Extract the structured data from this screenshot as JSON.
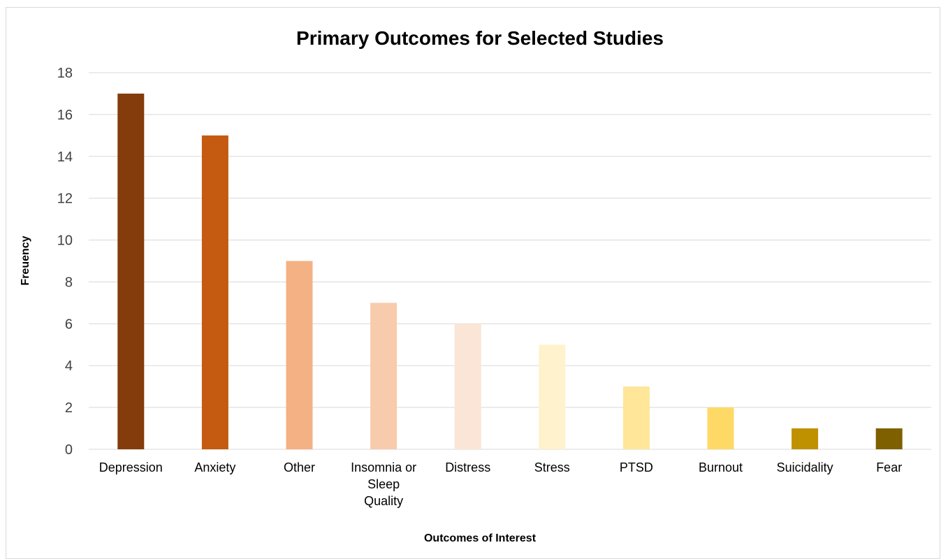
{
  "chart_data": {
    "type": "bar",
    "title": "Primary Outcomes for Selected Studies",
    "xlabel": "Outcomes of Interest",
    "ylabel": "Freuency",
    "ylim": [
      0,
      18
    ],
    "yticks": [
      0,
      2,
      4,
      6,
      8,
      10,
      12,
      14,
      16,
      18
    ],
    "grid": true,
    "categories": [
      "Depression",
      "Anxiety",
      "Other",
      "Insomnia or Sleep Quality",
      "Distress",
      "Stress",
      "PTSD",
      "Burnout",
      "Suicidality",
      "Fear"
    ],
    "category_lines": [
      [
        "Depression"
      ],
      [
        "Anxiety"
      ],
      [
        "Other"
      ],
      [
        "Insomnia or",
        "Sleep",
        "Quality"
      ],
      [
        "Distress"
      ],
      [
        "Stress"
      ],
      [
        "PTSD"
      ],
      [
        "Burnout"
      ],
      [
        "Suicidality"
      ],
      [
        "Fear"
      ]
    ],
    "values": [
      17,
      15,
      9,
      7,
      6,
      5,
      3,
      2,
      1,
      1
    ],
    "colors": [
      "#843C0C",
      "#C55A11",
      "#F4B183",
      "#F8CBAD",
      "#FBE5D6",
      "#FFF2CC",
      "#FFE699",
      "#FFD966",
      "#BF9000",
      "#7F6000"
    ]
  }
}
